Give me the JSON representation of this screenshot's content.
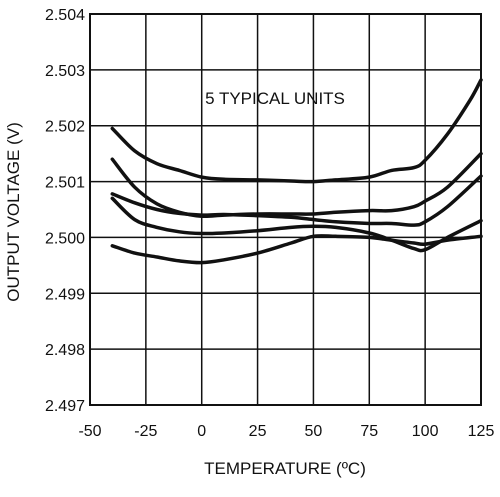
{
  "chart_data": {
    "type": "line",
    "title": "",
    "xlabel": "TEMPERATURE (ºC)",
    "ylabel": "OUTPUT VOLTAGE (V)",
    "annotation": "5 TYPICAL UNITS",
    "xlim": [
      -50,
      125
    ],
    "ylim": [
      2.497,
      2.504
    ],
    "x_ticks": [
      -50,
      -25,
      0,
      25,
      50,
      75,
      100,
      125
    ],
    "y_ticks": [
      "2.497",
      "2.498",
      "2.499",
      "2.500",
      "2.501",
      "2.502",
      "2.503",
      "2.504"
    ],
    "grid": true,
    "line_color": "#111111",
    "series": [
      {
        "x": [
          -40,
          -30,
          -20,
          -10,
          0,
          10,
          25,
          40,
          50,
          60,
          75,
          85,
          95,
          100,
          110,
          120,
          125
        ],
        "values": [
          2.50195,
          2.50155,
          2.50132,
          2.5012,
          2.50108,
          2.50104,
          2.50103,
          2.50101,
          2.501,
          2.50103,
          2.50108,
          2.5012,
          2.50125,
          2.50138,
          2.50185,
          2.50245,
          2.50282
        ]
      },
      {
        "x": [
          -40,
          -30,
          -20,
          -10,
          0,
          10,
          25,
          40,
          50,
          60,
          75,
          85,
          95,
          100,
          110,
          125
        ],
        "values": [
          2.5014,
          2.5009,
          2.5006,
          2.50045,
          2.50038,
          2.5004,
          2.50042,
          2.50042,
          2.50042,
          2.50045,
          2.50048,
          2.50048,
          2.50055,
          2.50065,
          2.5009,
          2.5015
        ]
      },
      {
        "x": [
          -40,
          -30,
          -20,
          -10,
          0,
          10,
          25,
          40,
          50,
          60,
          75,
          85,
          95,
          100,
          110,
          125
        ],
        "values": [
          2.50078,
          2.50062,
          2.5005,
          2.50043,
          2.5004,
          2.50041,
          2.50039,
          2.50036,
          2.50032,
          2.50028,
          2.50025,
          2.50025,
          2.50022,
          2.50028,
          2.50055,
          2.5011
        ]
      },
      {
        "x": [
          -40,
          -30,
          -20,
          -10,
          0,
          10,
          25,
          40,
          50,
          60,
          75,
          85,
          95,
          100,
          110,
          125
        ],
        "values": [
          2.5007,
          2.50032,
          2.50018,
          2.5001,
          2.50007,
          2.50008,
          2.50012,
          2.50018,
          2.5002,
          2.50018,
          2.50008,
          2.49995,
          2.4998,
          2.49978,
          2.5,
          2.5003
        ]
      },
      {
        "x": [
          -40,
          -30,
          -20,
          -10,
          0,
          10,
          25,
          40,
          50,
          60,
          75,
          85,
          95,
          100,
          110,
          125
        ],
        "values": [
          2.49985,
          2.49972,
          2.49965,
          2.49958,
          2.49955,
          2.4996,
          2.49972,
          2.4999,
          2.50002,
          2.50002,
          2.5,
          2.49995,
          2.4999,
          2.49988,
          2.49995,
          2.50002
        ]
      }
    ]
  }
}
